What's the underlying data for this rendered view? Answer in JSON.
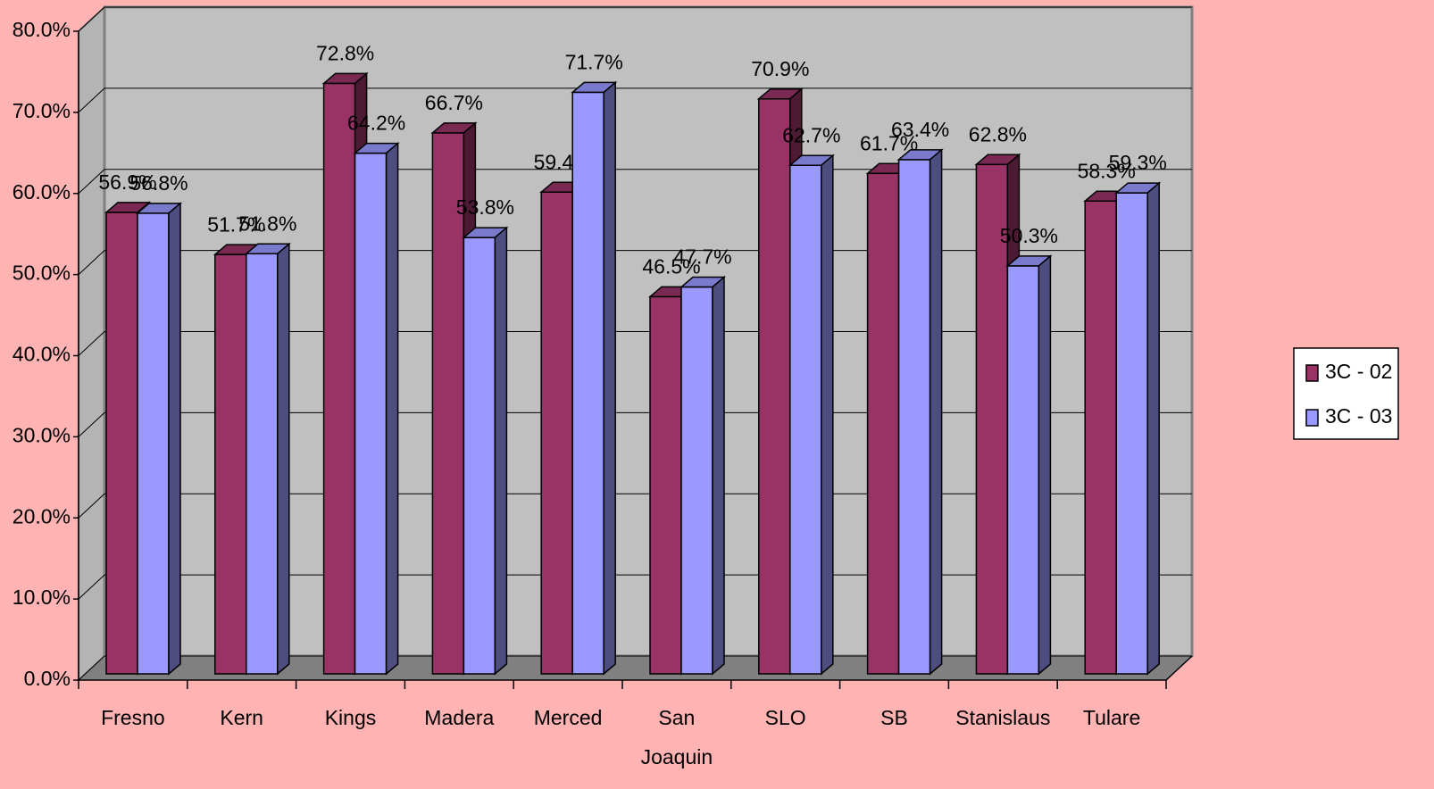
{
  "chart_data": {
    "type": "bar3d",
    "categories": [
      "Fresno",
      "Kern",
      "Kings",
      "Madera",
      "Merced",
      "San Joaquin",
      "SLO",
      "SB",
      "Stanislaus",
      "Tulare"
    ],
    "series": [
      {
        "name": "3C - 02",
        "color": "#993366",
        "values": [
          56.9,
          51.7,
          72.8,
          66.7,
          59.4,
          46.5,
          70.9,
          61.7,
          62.8,
          58.3
        ],
        "value_labels": [
          "56.9%",
          "51.7%",
          "72.8%",
          "66.7%",
          "59.4%",
          "46.5%",
          "70.9%",
          "61.7%",
          "62.8%",
          "58.3%"
        ]
      },
      {
        "name": "3C - 03",
        "color": "#9999ff",
        "values": [
          56.8,
          51.8,
          64.2,
          53.8,
          71.7,
          47.7,
          62.7,
          63.4,
          50.3,
          59.3
        ],
        "value_labels": [
          "56.8%",
          "51.8%",
          "64.2%",
          "53.8%",
          "71.7%",
          "47.7%",
          "62.7%",
          "63.4%",
          "50.3%",
          "59.3%"
        ]
      }
    ],
    "ylim": [
      0,
      80
    ],
    "yticks": [
      {
        "value": 0,
        "label": "0.0%"
      },
      {
        "value": 10,
        "label": "10.0%"
      },
      {
        "value": 20,
        "label": "20.0%"
      },
      {
        "value": 30,
        "label": "30.0%"
      },
      {
        "value": 40,
        "label": "40.0%"
      },
      {
        "value": 50,
        "label": "50.0%"
      },
      {
        "value": 60,
        "label": "60.0%"
      },
      {
        "value": 70,
        "label": "70.0%"
      },
      {
        "value": 80,
        "label": "80.0%"
      }
    ],
    "grid": true,
    "legend": "right"
  }
}
